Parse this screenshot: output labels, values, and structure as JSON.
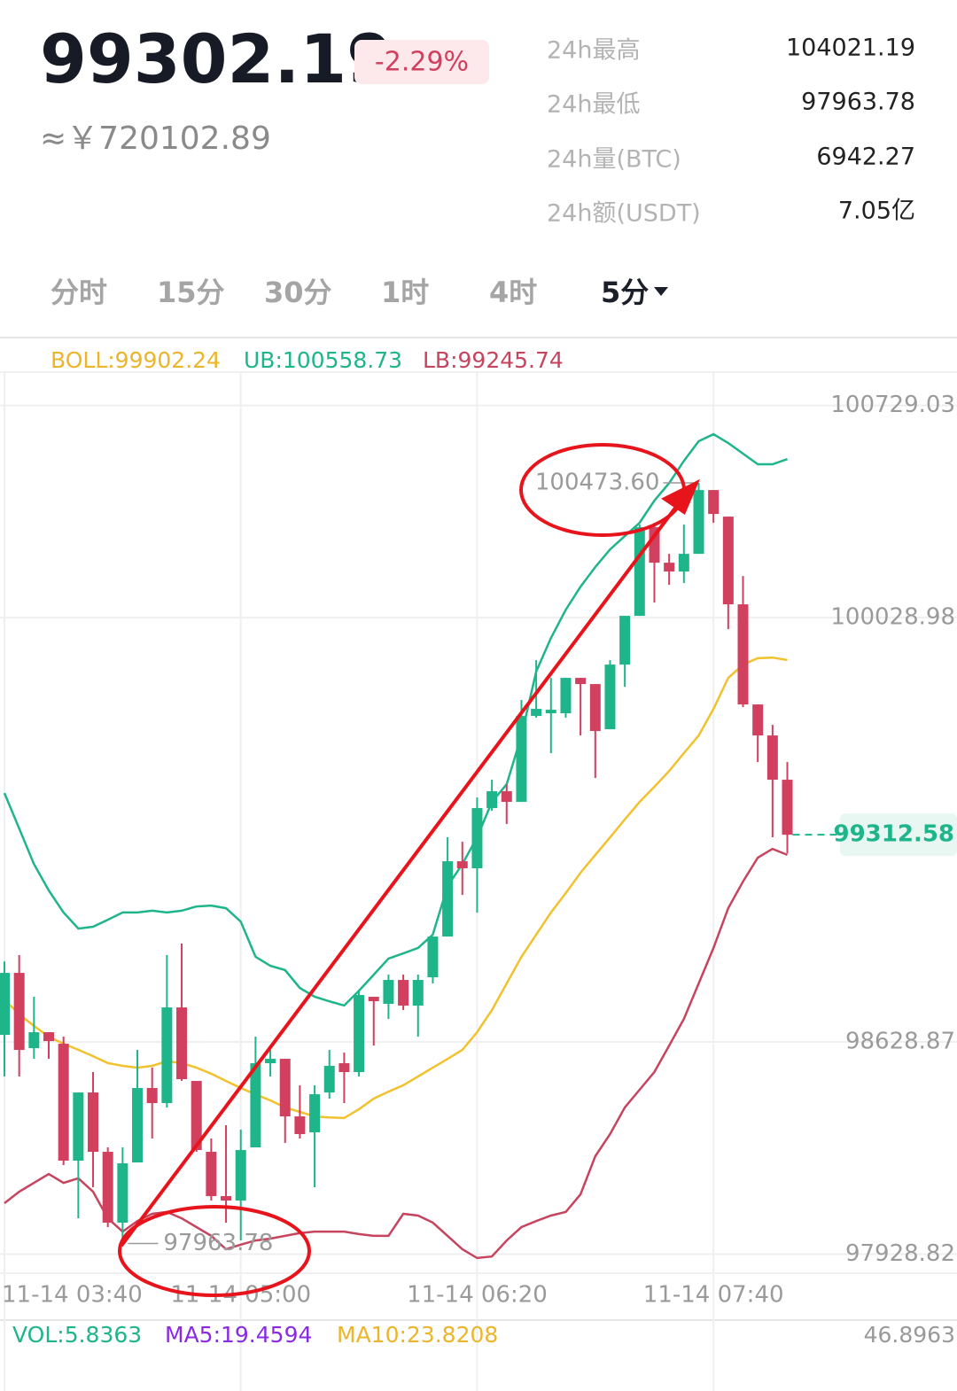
{
  "header": {
    "price": "99302.19",
    "change": "-2.29%",
    "cny": "≈￥720102.89",
    "stats": [
      {
        "label": "24h最高",
        "value": "104021.19"
      },
      {
        "label": "24h最低",
        "value": "97963.78"
      },
      {
        "label": "24h量(BTC)",
        "value": "6942.27"
      },
      {
        "label": "24h额(USDT)",
        "value": "7.05亿"
      }
    ]
  },
  "tabs": [
    "分时",
    "15分",
    "30分",
    "1时",
    "4时",
    "5分"
  ],
  "active_tab": 5,
  "chart_data": {
    "type": "candlestick",
    "legend": [
      {
        "text": "BOLL:99902.24",
        "color": "#ecb52a"
      },
      {
        "text": "UB:100558.73",
        "color": "#1fb58b"
      },
      {
        "text": "LB:99245.74",
        "color": "#c7445e"
      }
    ],
    "categories": [
      "11-14 03:40",
      null,
      null,
      null,
      null,
      null,
      null,
      null,
      null,
      null,
      null,
      null,
      null,
      null,
      null,
      null,
      "11-14 05:00",
      null,
      null,
      null,
      null,
      null,
      null,
      null,
      null,
      null,
      null,
      null,
      null,
      null,
      null,
      null,
      "11-14 06:20",
      null,
      null,
      null,
      null,
      null,
      null,
      null,
      null,
      null,
      null,
      null,
      null,
      null,
      null,
      null,
      "11-14 07:40",
      null,
      null,
      null,
      null,
      null
    ],
    "up_color": "#1fb58b",
    "down_color": "#d1405e",
    "open": [
      98652.2,
      98856.8,
      98608.4,
      98661,
      98623,
      98237.2,
      98462.2,
      98266.4,
      98032.6,
      98231.3,
      98476.9,
      98427.2,
      98742.8,
      98500.2,
      98266.4,
      98120.2,
      98105.6,
      98281,
      98558.7,
      98573.3,
      98383.3,
      98330.7,
      98462.2,
      98558.7,
      98529.5,
      98777.9,
      98754.5,
      98833.5,
      98748.7,
      98842.2,
      98976.7,
      99225.1,
      99201.8,
      99400.5,
      99456.1,
      99421,
      99704.5,
      99713.3,
      99713.3,
      99830.2,
      99809.7,
      99660.7,
      99874,
      100034.8,
      100327.1,
      100210.2,
      100181,
      100239.4,
      100449.9,
      100362.2,
      100072.8,
      99742.5,
      99640.2,
      99494.1
    ],
    "high": [
      98894.8,
      98915.3,
      98777.9,
      98661,
      98646.4,
      98462.2,
      98529.5,
      98281,
      98281,
      98602.5,
      98544.1,
      98915.3,
      98953.3,
      98500.2,
      98310.2,
      98354.1,
      98339.5,
      98646.4,
      98602.5,
      98573.3,
      98485.6,
      98485.6,
      98602.5,
      98593.8,
      98798.4,
      98777.9,
      98851,
      98851,
      98851,
      98976.7,
      99304.1,
      99289.4,
      99435.6,
      99494.1,
      99479.4,
      99757.1,
      99888.7,
      99830.2,
      99830.2,
      99830.2,
      99809.7,
      99888.7,
      100034.8,
      100335.9,
      100341.7,
      100239.4,
      100335.9,
      100473.6,
      100449.9,
      100362.2,
      100166.3,
      99742.5,
      99675.3,
      99552.5
    ],
    "low": [
      98514.9,
      98514.9,
      98573.3,
      98573.3,
      98222.6,
      98047.2,
      98149.5,
      98017.9,
      97963.78,
      98231.3,
      98310.2,
      98412.5,
      98500.2,
      98266.4,
      98105.6,
      98032.6,
      97974.1,
      98281,
      98514.9,
      98295.6,
      98310.2,
      98149.5,
      98441.8,
      98427.2,
      98514.9,
      98617.2,
      98704.8,
      98734.1,
      98646.4,
      98821.8,
      98976.7,
      99114.1,
      99055.6,
      99391.8,
      99347.9,
      99421,
      99698.7,
      99581.7,
      99698.7,
      99640.2,
      99499.9,
      99660.7,
      99801,
      100034.8,
      100078.7,
      100137.1,
      100143,
      100239.4,
      100341.7,
      99991,
      99733.7,
      99552.5,
      99304.1,
      99251.4
    ],
    "close": [
      98856.8,
      98602.5,
      98661,
      98631.8,
      98237.2,
      98462.2,
      98266.4,
      98032.6,
      98228.4,
      98476.9,
      98427.2,
      98742.8,
      98506.1,
      98272.2,
      98120.2,
      98105.6,
      98272.2,
      98558.7,
      98573.3,
      98383.3,
      98324.9,
      98456.4,
      98549.9,
      98529.5,
      98783.8,
      98763.3,
      98833.5,
      98748.7,
      98833.5,
      98976.7,
      99225.1,
      99201.8,
      99400.5,
      99456.1,
      99421,
      99704.5,
      99727.9,
      99725,
      99830.2,
      99809.7,
      99654.8,
      99874,
      100034.8,
      100327.1,
      100210.2,
      100181,
      100239.4,
      100449.9,
      100371,
      100072.8,
      99742.5,
      99640.2,
      99494.1,
      99312.58
    ],
    "overlays": [
      {
        "color": "#1fb58b",
        "values": [
          99450,
          99333,
          99216,
          99129,
          99056,
          99003,
          99009,
          99032,
          99056,
          99056,
          99062,
          99056,
          99062,
          99076,
          99079,
          99070,
          99026,
          98910,
          98880,
          98866,
          98807,
          98778,
          98763,
          98749,
          98798,
          98851,
          98904,
          98921,
          98939,
          98983,
          99143,
          99216,
          99304,
          99421,
          99479,
          99640,
          99851,
          99962,
          100055,
          100131,
          100196,
          100254,
          100298,
          100342,
          100415,
          100473,
          100546,
          100611,
          100634,
          100605,
          100570,
          100535,
          100535,
          100552
        ]
      },
      {
        "color": "#f2c12e",
        "values": [
          98769,
          98720,
          98682,
          98646,
          98623,
          98603,
          98582,
          98559,
          98550,
          98544,
          98550,
          98565,
          98559,
          98544,
          98524,
          98500,
          98477,
          98456,
          98436,
          98413,
          98398,
          98383,
          98380,
          98378,
          98407,
          98442,
          98465,
          98486,
          98515,
          98544,
          98573,
          98603,
          98661,
          98734,
          98822,
          98910,
          98983,
          99056,
          99120,
          99187,
          99246,
          99304,
          99363,
          99421,
          99471,
          99523,
          99582,
          99640,
          99728,
          99830,
          99874,
          99895,
          99897,
          99889
        ]
      },
      {
        "color": "#c7445e",
        "values": [
          98097,
          98135,
          98164,
          98193,
          98164,
          98179,
          98135,
          98047,
          98003,
          98038,
          98062,
          98068,
          98047,
          98018,
          97989,
          97945,
          97960,
          97974,
          97980,
          97989,
          97998,
          98003,
          98003,
          98003,
          97995,
          97989,
          97989,
          98062,
          98056,
          98033,
          97989,
          97945,
          97916,
          97921,
          97974,
          98018,
          98038,
          98056,
          98068,
          98126,
          98252,
          98325,
          98413,
          98471,
          98530,
          98617,
          98705,
          98822,
          98939,
          99070,
          99158,
          99237,
          99266,
          99246
        ]
      }
    ],
    "ylim": [
      97866,
      100839
    ],
    "yticks": [
      100729.03,
      100028.98,
      98628.87,
      97928.82
    ],
    "grid": true,
    "last_price": 99312.58,
    "max_annotation": {
      "value": 100473.6,
      "label": "100473.60"
    },
    "min_annotation": 97963.78,
    "volume_legend": [
      {
        "text": "VOL:5.8363",
        "color": "#1fb58b"
      },
      {
        "text": "MA5:19.4594",
        "color": "#8a2be2"
      },
      {
        "text": "MA10:23.8208",
        "color": "#ecb52a"
      }
    ],
    "volume_max": "46.8963"
  }
}
